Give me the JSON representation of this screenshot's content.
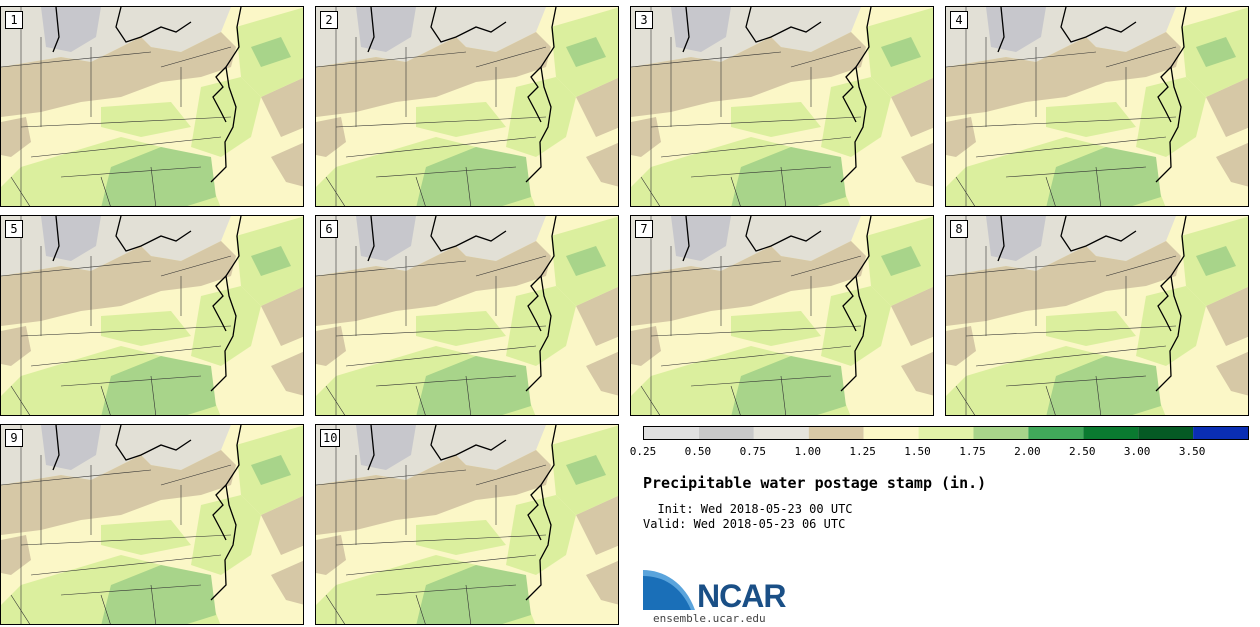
{
  "map": {
    "members": [
      "1",
      "2",
      "3",
      "4",
      "5",
      "6",
      "7",
      "8",
      "9",
      "10"
    ],
    "colors": {
      "very_dry": "#d9d9d9",
      "dry": "#c7c7cc",
      "mid_dry": "#e2e0d6",
      "tan": "#d6c8a6",
      "cream": "#fbf7c7",
      "light_green": "#dbef9e",
      "mid_green": "#a8d48a",
      "green": "#4fae5c",
      "dark_green": "#137a2e"
    }
  },
  "colorbar": {
    "ticks": [
      "0.25",
      "0.50",
      "0.75",
      "1.00",
      "1.25",
      "1.50",
      "1.75",
      "2.00",
      "2.50",
      "3.00",
      "3.50"
    ],
    "colors": [
      "#e0e0e0",
      "#c9c9c9",
      "#e6e4dc",
      "#d8c9a6",
      "#fbf7c7",
      "#e3f3a8",
      "#a8d48a",
      "#41a85a",
      "#0a7a30",
      "#055a24",
      "#0a2eb4"
    ]
  },
  "title": "Precipitable water postage stamp (in.)",
  "init_line": "  Init: Wed 2018-05-23 00 UTC",
  "valid_line": "Valid: Wed 2018-05-23 06 UTC",
  "logo": {
    "text": "NCAR",
    "site": "ensemble.ucar.edu"
  }
}
